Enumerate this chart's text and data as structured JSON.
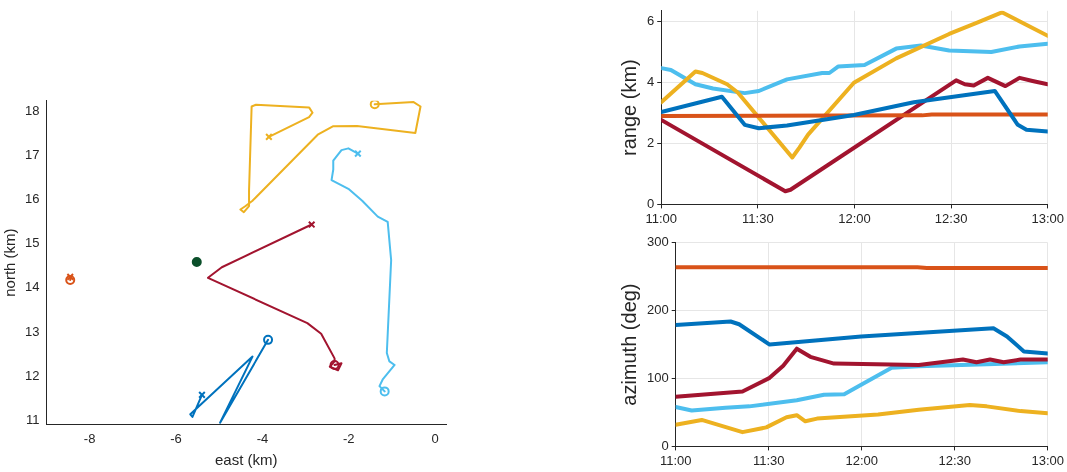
{
  "chart_data": [
    {
      "type": "line",
      "xlabel": "east (km)",
      "ylabel": "north (km)",
      "xlim": [
        -9,
        0.25
      ],
      "ylim": [
        10.9,
        18.25
      ],
      "xticks": [
        -8,
        -6,
        -4,
        -2,
        0
      ],
      "yticks": [
        11,
        12,
        13,
        14,
        15,
        16,
        17,
        18
      ],
      "grid": false,
      "marker": "none",
      "series": [
        {
          "color": "#edb120",
          "x": [
            -1.4,
            -0.5,
            -0.34,
            -0.46,
            -1.81,
            -2.37,
            -2.72,
            -4.23,
            -4.39,
            -4.51,
            -4.43,
            -4.31,
            -4.31,
            -4.25,
            -4.15,
            -2.92,
            -2.84,
            -2.92,
            -3.85
          ],
          "values": [
            18.17,
            18.22,
            18.12,
            17.52,
            17.68,
            17.67,
            17.48,
            15.98,
            15.86,
            15.78,
            15.72,
            15.86,
            16.21,
            18.12,
            18.16,
            18.1,
            17.98,
            17.88,
            17.43
          ]
        },
        {
          "color": "#4dbeee",
          "x": [
            -1.17,
            -1.29,
            -1.21,
            -0.94,
            -1.06,
            -1.12,
            -1.02,
            -1.1,
            -1.33,
            -1.69,
            -2.01,
            -2.4,
            -2.36,
            -2.36,
            -2.17,
            -2.01,
            -1.79
          ],
          "values": [
            11.65,
            11.77,
            11.93,
            12.25,
            12.33,
            12.52,
            14.63,
            15.5,
            15.62,
            15.98,
            16.25,
            16.45,
            16.69,
            16.89,
            17.13,
            17.17,
            17.05
          ]
        },
        {
          "color": "#a2142f",
          "x": [
            -2.33,
            -2.17,
            -2.25,
            -2.44,
            -2.33,
            -2.33,
            -2.64,
            -2.96,
            -5.26,
            -4.94,
            -2.86
          ],
          "values": [
            12.25,
            12.29,
            12.13,
            12.21,
            12.33,
            12.4,
            12.96,
            13.2,
            14.23,
            14.47,
            15.44
          ]
        },
        {
          "color": "#0072bd",
          "x": [
            -3.87,
            -4.98,
            -4.23,
            -5.67,
            -5.62,
            -5.4
          ],
          "values": [
            12.82,
            10.94,
            12.44,
            11.13,
            11.07,
            11.57
          ]
        },
        {
          "color": "#d95319",
          "x": [
            -8.45,
            -8.45
          ],
          "values": [
            14.18,
            14.25
          ]
        },
        {
          "type": "scatter",
          "marker": "circle",
          "x": [
            -1.4,
            -1.17,
            -2.33,
            -3.87,
            -8.45
          ],
          "values": [
            18.17,
            11.65,
            12.25,
            12.82,
            14.18
          ],
          "colors": [
            "#edb120",
            "#4dbeee",
            "#a2142f",
            "#0072bd",
            "#d95319"
          ]
        },
        {
          "type": "scatter",
          "marker": "cross",
          "x": [
            -3.85,
            -1.79,
            -2.86,
            -5.4,
            -8.45
          ],
          "values": [
            17.43,
            17.05,
            15.44,
            11.57,
            14.25
          ],
          "colors": [
            "#edb120",
            "#4dbeee",
            "#a2142f",
            "#0072bd",
            "#d95319"
          ]
        },
        {
          "type": "scatter",
          "marker": "circle",
          "color": "#0b4f2a",
          "x": [
            -5.52
          ],
          "values": [
            14.59
          ]
        }
      ]
    },
    {
      "type": "line",
      "ylabel": "range (km)",
      "xlim": [
        11,
        13
      ],
      "ylim": [
        0,
        6.35
      ],
      "xticks": [
        {
          "value": 11,
          "label": "11:00"
        },
        {
          "value": 11.5,
          "label": "11:30"
        },
        {
          "value": 12,
          "label": "12:00"
        },
        {
          "value": 12.5,
          "label": "12:30"
        },
        {
          "value": 13,
          "label": "13:00"
        }
      ],
      "yticks": [
        0,
        2,
        4,
        6
      ],
      "grid": true,
      "marker": "none",
      "series": [
        {
          "color": "#0072bd",
          "x": [
            11,
            11.314,
            11.432,
            11.505,
            11.651,
            11.997,
            12.307,
            12.726,
            12.845,
            12.89,
            13
          ],
          "values": [
            3.03,
            3.53,
            2.61,
            2.5,
            2.59,
            2.93,
            3.35,
            3.72,
            2.61,
            2.45,
            2.39
          ]
        },
        {
          "color": "#d95319",
          "x": [
            11,
            12.35,
            12.4,
            13
          ],
          "values": [
            2.9,
            2.92,
            2.95,
            2.95
          ]
        },
        {
          "color": "#edb120",
          "x": [
            11,
            11.177,
            11.213,
            11.341,
            11.396,
            11.678,
            11.715,
            11.76,
            11.997,
            12.216,
            12.49,
            12.635,
            12.763,
            13
          ],
          "values": [
            3.35,
            4.36,
            4.31,
            3.94,
            3.67,
            1.54,
            1.86,
            2.29,
            3.99,
            4.79,
            5.59,
            5.96,
            6.3,
            5.53
          ]
        },
        {
          "color": "#4dbeee",
          "x": [
            11,
            11.05,
            11.177,
            11.268,
            11.432,
            11.505,
            11.651,
            11.833,
            11.87,
            11.915,
            12.052,
            12.216,
            12.344,
            12.49,
            12.708,
            12.854,
            13
          ],
          "values": [
            4.47,
            4.41,
            3.94,
            3.8,
            3.65,
            3.72,
            4.1,
            4.31,
            4.31,
            4.52,
            4.57,
            5.11,
            5.21,
            5.05,
            5.0,
            5.18,
            5.27
          ]
        },
        {
          "color": "#a2142f",
          "x": [
            11,
            11.642,
            11.669,
            12.526,
            12.571,
            12.617,
            12.69,
            12.781,
            12.854,
            12.927,
            13
          ],
          "values": [
            2.77,
            0.43,
            0.48,
            4.07,
            3.94,
            3.9,
            4.15,
            3.88,
            4.15,
            4.04,
            3.94
          ]
        }
      ]
    },
    {
      "type": "line",
      "ylabel": "azimuth (deg)",
      "xlim": [
        11,
        13
      ],
      "ylim": [
        0,
        300
      ],
      "xticks": [
        {
          "value": 11,
          "label": "11:00"
        },
        {
          "value": 11.5,
          "label": "11:30"
        },
        {
          "value": 12,
          "label": "12:00"
        },
        {
          "value": 12.5,
          "label": "12:30"
        },
        {
          "value": 13,
          "label": "13:00"
        }
      ],
      "yticks": [
        0,
        100,
        200,
        300
      ],
      "grid": true,
      "marker": "none",
      "series": [
        {
          "color": "#d95319",
          "x": [
            11,
            12.3,
            12.35,
            13
          ],
          "values": [
            264,
            264,
            263,
            263
          ]
        },
        {
          "color": "#0072bd",
          "x": [
            11,
            11.295,
            11.341,
            11.505,
            11.997,
            12.708,
            12.781,
            12.872,
            13
          ],
          "values": [
            179,
            184,
            180,
            150,
            162,
            174,
            162,
            140,
            137
          ]
        },
        {
          "color": "#a2142f",
          "x": [
            11,
            11.359,
            11.505,
            11.578,
            11.651,
            11.724,
            11.851,
            12.307,
            12.544,
            12.617,
            12.69,
            12.763,
            12.854,
            13
          ],
          "values": [
            73,
            81,
            101,
            119,
            144,
            132,
            122,
            120,
            128,
            124,
            128,
            124,
            128,
            128
          ]
        },
        {
          "color": "#4dbeee",
          "x": [
            11,
            11.086,
            11.268,
            11.396,
            11.651,
            11.797,
            11.906,
            11.997,
            12.161,
            12.307,
            12.672,
            13
          ],
          "values": [
            58,
            53,
            57,
            59,
            68,
            76,
            77,
            91,
            116,
            118,
            121,
            124
          ]
        },
        {
          "color": "#edb120",
          "x": [
            11,
            11.14,
            11.359,
            11.487,
            11.596,
            11.651,
            11.697,
            11.76,
            12.088,
            12.307,
            12.581,
            12.672,
            12.854,
            13
          ],
          "values": [
            32,
            39,
            21,
            28,
            43,
            46,
            37,
            41,
            47,
            54,
            61,
            59,
            52,
            49
          ]
        }
      ]
    }
  ]
}
